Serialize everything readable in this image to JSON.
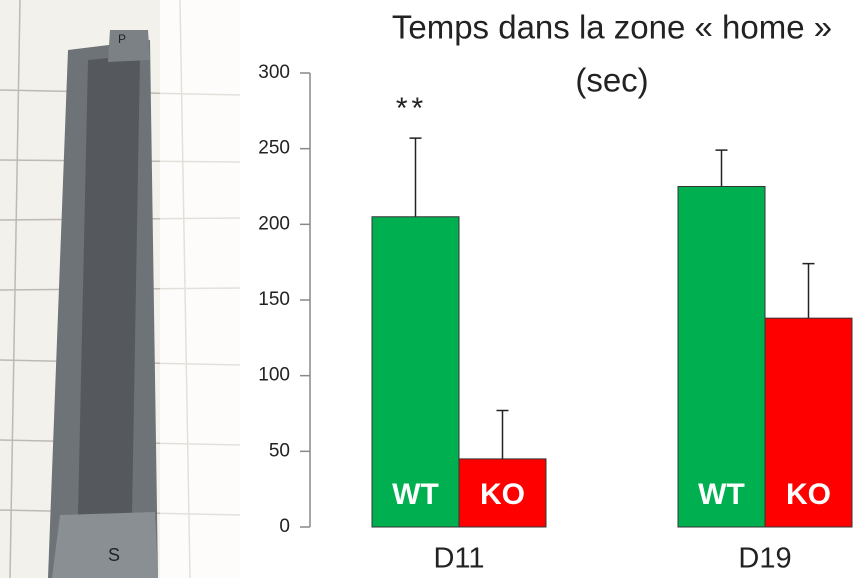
{
  "chart_data": {
    "type": "bar",
    "title": "Temps dans la zone « home »",
    "subtitle": "(sec)",
    "categories": [
      "D11",
      "D19"
    ],
    "series": [
      {
        "name": "WT",
        "color": "#00b050",
        "values": [
          205,
          225
        ],
        "errors": [
          52,
          24
        ]
      },
      {
        "name": "KO",
        "color": "#ff0000",
        "values": [
          45,
          138
        ],
        "errors": [
          32,
          36
        ]
      }
    ],
    "annotations": [
      {
        "text": "**",
        "category": 0,
        "series": 0
      }
    ],
    "ylim": [
      0,
      300
    ],
    "yticks": [
      0,
      50,
      100,
      150,
      200,
      250,
      300
    ],
    "grid": false
  }
}
